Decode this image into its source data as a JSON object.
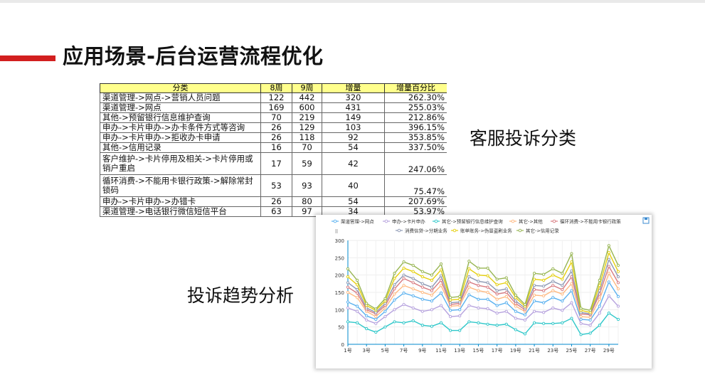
{
  "slide": {
    "title": "应用场景-后台运营流程优化",
    "label_classification": "客服投诉分类",
    "label_trend": "投诉趋势分析"
  },
  "table": {
    "headers": [
      "分类",
      "8周",
      "9周",
      "增量",
      "增量百分比"
    ],
    "rows": [
      {
        "category": "渠道管理->网点->营销人员问题",
        "w8": "122",
        "w9": "442",
        "inc": "320",
        "pct": "262.30%"
      },
      {
        "category": "渠道管理->网点",
        "w8": "169",
        "w9": "600",
        "inc": "431",
        "pct": "255.03%"
      },
      {
        "category": "其他->预留银行信息维护查询",
        "w8": "70",
        "w9": "219",
        "inc": "149",
        "pct": "212.86%"
      },
      {
        "category": "申办->卡片申办->办卡条件方式等咨询",
        "w8": "26",
        "w9": "129",
        "inc": "103",
        "pct": "396.15%"
      },
      {
        "category": "申办->卡片申办->拒收办卡申请",
        "w8": "26",
        "w9": "118",
        "inc": "92",
        "pct": "353.85%"
      },
      {
        "category": "其他->信用记录",
        "w8": "16",
        "w9": "70",
        "inc": "54",
        "pct": "337.50%"
      },
      {
        "category": "客户维护->卡片停用及相关->卡片停用或销户重启",
        "w8": "17",
        "w9": "59",
        "inc": "42",
        "pct": "247.06%"
      },
      {
        "category": "循环消费->不能用卡银行政策->解除常封锁码",
        "w8": "53",
        "w9": "93",
        "inc": "40",
        "pct": "75.47%"
      },
      {
        "category": "申办->卡片申办->办错卡",
        "w8": "26",
        "w9": "80",
        "inc": "54",
        "pct": "207.69%"
      },
      {
        "category": "渠道管理->电话银行微信短信平台",
        "w8": "63",
        "w9": "97",
        "inc": "34",
        "pct": "53.97%"
      }
    ]
  },
  "chart_data": {
    "type": "line",
    "legend_row1": [
      "渠道管理->网点",
      "申办->卡片申办",
      "其它->预留银行信息维护查询",
      "其它->其他",
      "循环消费->不能用卡银行政策"
    ],
    "legend_row2": [
      "消费信贷->分期业务",
      "账单账务->伪冒盗刷业务",
      "其它->信用记录"
    ],
    "legend_placement": "top",
    "ylim": [
      0,
      300
    ],
    "yticks": [
      "0",
      "50",
      "100",
      "150",
      "200",
      "250",
      "300"
    ],
    "categories": [
      "1号",
      "2号",
      "3号",
      "4号",
      "5号",
      "6号",
      "7号",
      "8号",
      "9号",
      "10号",
      "11号",
      "12号",
      "13号",
      "14号",
      "15号",
      "16号",
      "17号",
      "18号",
      "19号",
      "20号",
      "21号",
      "22号",
      "23号",
      "24号",
      "25号",
      "26号",
      "27号",
      "28号",
      "29号",
      "30号"
    ],
    "xtick_labels": [
      "1号",
      "3号",
      "5号",
      "7号",
      "9号",
      "11号",
      "13号",
      "15号",
      "17号",
      "19号",
      "21号",
      "23号",
      "25号",
      "27号",
      "29号"
    ],
    "grid": true,
    "series": [
      {
        "name": "渠道管理->网点",
        "color": "#5ab1ef",
        "values": [
          122,
          110,
          82,
          72,
          95,
          128,
          148,
          140,
          130,
          125,
          148,
          98,
          100,
          143,
          130,
          130,
          112,
          120,
          95,
          85,
          125,
          120,
          135,
          125,
          155,
          72,
          70,
          110,
          180,
          138
        ]
      },
      {
        "name": "申办->卡片申办",
        "color": "#b6a2de",
        "values": [
          105,
          95,
          70,
          60,
          80,
          100,
          115,
          105,
          95,
          100,
          112,
          80,
          82,
          112,
          105,
          103,
          90,
          95,
          75,
          70,
          95,
          92,
          105,
          98,
          120,
          60,
          55,
          90,
          140,
          110
        ]
      },
      {
        "name": "其它->预留银行信息维护查询",
        "color": "#2ec7c9",
        "values": [
          65,
          62,
          45,
          35,
          50,
          65,
          62,
          68,
          55,
          52,
          62,
          40,
          40,
          65,
          62,
          58,
          55,
          58,
          42,
          30,
          62,
          60,
          60,
          62,
          75,
          28,
          32,
          55,
          90,
          72
        ]
      },
      {
        "name": "其它->其他",
        "color": "#ffb980",
        "values": [
          150,
          135,
          95,
          80,
          105,
          145,
          170,
          160,
          150,
          142,
          170,
          110,
          112,
          165,
          155,
          150,
          130,
          138,
          110,
          95,
          142,
          140,
          155,
          145,
          175,
          80,
          78,
          130,
          205,
          160
        ]
      },
      {
        "name": "循环消费->不能用卡银行政策",
        "color": "#d87a80",
        "values": [
          165,
          148,
          100,
          88,
          112,
          160,
          190,
          178,
          165,
          155,
          185,
          115,
          118,
          180,
          170,
          165,
          145,
          150,
          118,
          100,
          158,
          155,
          170,
          158,
          195,
          88,
          85,
          145,
          225,
          178
        ]
      },
      {
        "name": "消费信贷->分期业务",
        "color": "#8d98b3",
        "values": [
          178,
          158,
          105,
          92,
          118,
          172,
          200,
          190,
          175,
          165,
          198,
          120,
          122,
          195,
          182,
          178,
          155,
          160,
          125,
          105,
          170,
          168,
          182,
          170,
          212,
          92,
          88,
          155,
          245,
          195
        ]
      },
      {
        "name": "账单账务->伪冒盗刷业务",
        "color": "#e5cf0d",
        "values": [
          195,
          172,
          112,
          98,
          125,
          190,
          220,
          210,
          195,
          185,
          215,
          128,
          130,
          218,
          200,
          198,
          172,
          178,
          135,
          110,
          188,
          185,
          200,
          188,
          238,
          98,
          92,
          170,
          265,
          210
        ]
      },
      {
        "name": "其它->信用记录",
        "color": "#97b552",
        "values": [
          218,
          185,
          118,
          102,
          132,
          205,
          238,
          228,
          210,
          200,
          232,
          135,
          138,
          240,
          220,
          220,
          188,
          192,
          142,
          115,
          205,
          202,
          218,
          205,
          262,
          104,
          98,
          185,
          285,
          228
        ]
      }
    ]
  },
  "chart_icons": {
    "save": "save-icon",
    "menu": "menu-lines-icon"
  }
}
